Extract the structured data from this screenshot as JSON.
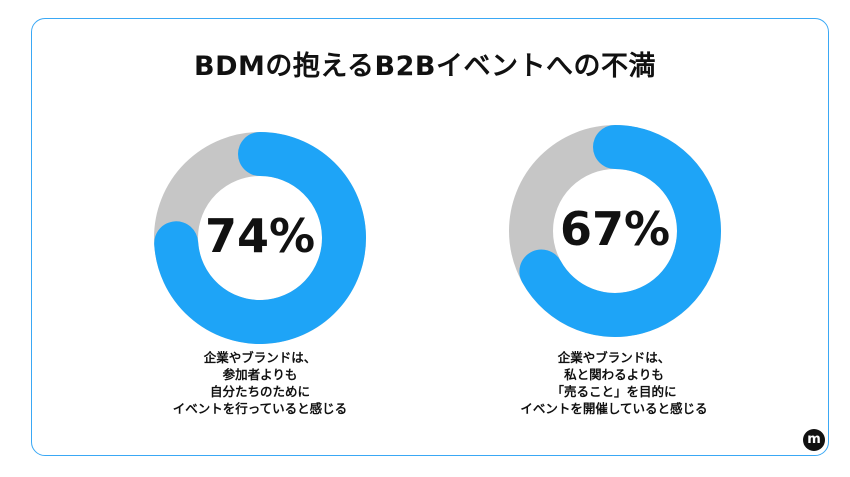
{
  "title": "BDMの抱えるB2Bイベントへの不満",
  "colors": {
    "accent": "#1ea4f7",
    "remainder": "#c6c6c6",
    "border": "#3aa8f5",
    "text": "#111111"
  },
  "chart_data": [
    {
      "type": "pie",
      "label": "74%",
      "values": [
        74,
        26
      ],
      "caption": [
        "企業やブランドは、",
        "参加者よりも",
        "自分たちのために",
        "イベントを行っていると感じる"
      ]
    },
    {
      "type": "pie",
      "label": "67%",
      "values": [
        67,
        33
      ],
      "caption": [
        "企業やブランドは、",
        "私と関わるよりも",
        "「売ること」を目的に",
        "イベントを開催していると感じる"
      ]
    }
  ],
  "logo": {
    "letter": "m",
    "icon": "m-logo-icon"
  }
}
